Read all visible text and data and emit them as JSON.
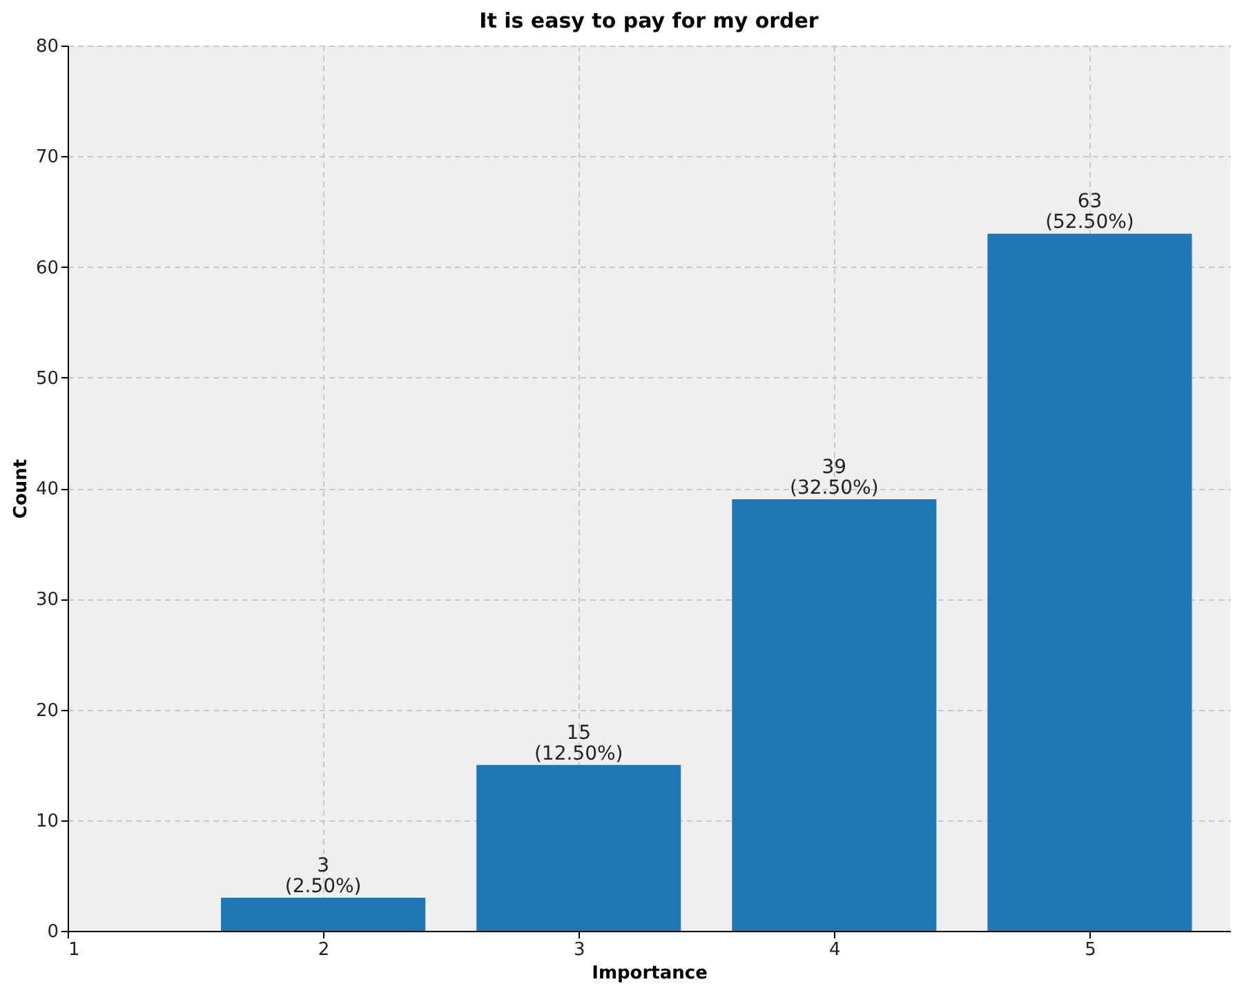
{
  "chart_data": {
    "type": "bar",
    "title": "It is easy to pay for my order",
    "xlabel": "Importance",
    "ylabel": "Count",
    "x": [
      2,
      3,
      4,
      5
    ],
    "values": [
      3,
      15,
      39,
      63
    ],
    "color": "#1f77b4",
    "value_labels": [
      "3\n(2.50%)",
      "15\n(12.50%)",
      "39\n(32.50%)",
      "63\n(52.50%)"
    ],
    "xlim": [
      1,
      5.55
    ],
    "xticks": [
      1,
      2,
      3,
      4,
      5
    ],
    "ylim": [
      0,
      80
    ],
    "yticks": [
      0,
      10,
      20,
      30,
      40,
      50,
      60,
      70,
      80
    ],
    "grid": true
  }
}
